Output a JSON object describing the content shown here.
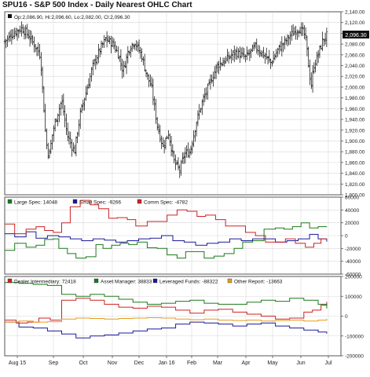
{
  "title": "SPU16 - S&P 500 Index - Daily Nearest OHLC Chart",
  "ohlc_readout": "Op:2,086.90, Hi:2,096.60, Lo:2,082.00, Cl:2,096.30",
  "last_price_badge": "2,096.30",
  "x_axis_labels": [
    "Aug 15",
    "Sep",
    "Oct",
    "Nov",
    "Dec",
    "Jan 16",
    "Feb",
    "Mar",
    "Apr",
    "May",
    "Jun",
    "Jul"
  ],
  "colors": {
    "price_bars": "#000000",
    "large_spec": "#1a7a1a",
    "small_spec": "#1a1a99",
    "comm_spec": "#cc2222",
    "dealer": "#cc2222",
    "asset_manager": "#1a7a1a",
    "leveraged": "#1a1a99",
    "other": "#e69b1f",
    "grid": "#d8d8d8",
    "badge_bg": "#111111",
    "badge_text": "#ffffff"
  },
  "chart_data": [
    {
      "type": "ohlc",
      "title": "SPU16 - S&P 500 Index - Daily Nearest OHLC Chart",
      "ylim": [
        1800,
        2140
      ],
      "ytick_labels": [
        "1,800.00",
        "1,820.00",
        "1,840.00",
        "1,860.00",
        "1,880.00",
        "1,900.00",
        "1,920.00",
        "1,940.00",
        "1,960.00",
        "1,980.00",
        "2,000.00",
        "2,020.00",
        "2,040.00",
        "2,060.00",
        "2,080.00",
        "2,100.00",
        "2,120.00",
        "2,140.00"
      ],
      "x_range": [
        0,
        11.8
      ],
      "close_path": [
        [
          0.0,
          2085
        ],
        [
          0.3,
          2100
        ],
        [
          0.6,
          2110
        ],
        [
          0.85,
          2095
        ],
        [
          1.0,
          2082
        ],
        [
          1.25,
          2060
        ],
        [
          1.45,
          1900
        ],
        [
          1.55,
          1870
        ],
        [
          1.7,
          1920
        ],
        [
          1.85,
          1950
        ],
        [
          2.0,
          1975
        ],
        [
          2.2,
          1910
        ],
        [
          2.45,
          1880
        ],
        [
          2.65,
          1950
        ],
        [
          2.9,
          2000
        ],
        [
          3.1,
          2040
        ],
        [
          3.35,
          2070
        ],
        [
          3.55,
          2090
        ],
        [
          3.8,
          2080
        ],
        [
          4.0,
          2060
        ],
        [
          4.15,
          2030
        ],
        [
          4.35,
          2070
        ],
        [
          4.55,
          2085
        ],
        [
          4.8,
          2060
        ],
        [
          5.0,
          2020
        ],
        [
          5.15,
          2000
        ],
        [
          5.35,
          1930
        ],
        [
          5.55,
          1890
        ],
        [
          5.75,
          1915
        ],
        [
          5.95,
          1860
        ],
        [
          6.15,
          1845
        ],
        [
          6.3,
          1875
        ],
        [
          6.5,
          1880
        ],
        [
          6.75,
          1940
        ],
        [
          6.95,
          1975
        ],
        [
          7.15,
          2000
        ],
        [
          7.45,
          2040
        ],
        [
          7.75,
          2050
        ],
        [
          8.1,
          2065
        ],
        [
          8.45,
          2055
        ],
        [
          8.8,
          2075
        ],
        [
          9.1,
          2060
        ],
        [
          9.35,
          2045
        ],
        [
          9.6,
          2070
        ],
        [
          9.85,
          2085
        ],
        [
          10.1,
          2100
        ],
        [
          10.35,
          2110
        ],
        [
          10.55,
          2095
        ],
        [
          10.75,
          2000
        ],
        [
          10.85,
          2040
        ],
        [
          11.0,
          2060
        ],
        [
          11.15,
          2085
        ],
        [
          11.3,
          2096.3
        ]
      ]
    },
    {
      "type": "line",
      "title": "",
      "ylim": [
        -60000,
        60000
      ],
      "ytick_labels": [
        "-60000",
        "-40000",
        "-20000",
        "0",
        "20000",
        "40000",
        "60000"
      ],
      "legend": [
        "Large Spec: 14048",
        "Small Spec: -9266",
        "Comm Spec: -4782"
      ],
      "series": [
        {
          "name": "Large Spec",
          "color": "#1a7a1a",
          "points": [
            [
              0.0,
              -23000
            ],
            [
              0.35,
              -12000
            ],
            [
              0.75,
              -18000
            ],
            [
              1.1,
              -15000
            ],
            [
              1.4,
              -6000
            ],
            [
              1.7,
              -5000
            ],
            [
              1.9,
              -20000
            ],
            [
              2.2,
              -28000
            ],
            [
              2.5,
              -35000
            ],
            [
              2.85,
              -33000
            ],
            [
              3.2,
              -14000
            ],
            [
              3.45,
              -20000
            ],
            [
              3.75,
              -15000
            ],
            [
              4.05,
              -12000
            ],
            [
              4.35,
              -14000
            ],
            [
              4.65,
              -10000
            ],
            [
              5.0,
              -19000
            ],
            [
              5.35,
              -20000
            ],
            [
              5.7,
              -30000
            ],
            [
              6.05,
              -35000
            ],
            [
              6.35,
              -25000
            ],
            [
              6.7,
              -25000
            ],
            [
              7.0,
              -35000
            ],
            [
              7.35,
              -32000
            ],
            [
              7.7,
              -28000
            ],
            [
              8.05,
              -20000
            ],
            [
              8.35,
              -10000
            ],
            [
              8.7,
              -8000
            ],
            [
              9.1,
              10000
            ],
            [
              9.5,
              12000
            ],
            [
              9.8,
              10000
            ],
            [
              10.1,
              14000
            ],
            [
              10.4,
              20000
            ],
            [
              10.7,
              12000
            ],
            [
              11.0,
              14000
            ],
            [
              11.3,
              14048
            ]
          ]
        },
        {
          "name": "Small Spec",
          "color": "#1a1a99",
          "points": [
            [
              0.0,
              3000
            ],
            [
              0.35,
              -2000
            ],
            [
              0.75,
              6000
            ],
            [
              1.1,
              -4000
            ],
            [
              1.5,
              0
            ],
            [
              1.9,
              -2000
            ],
            [
              2.3,
              -5000
            ],
            [
              2.7,
              -8000
            ],
            [
              3.1,
              -5000
            ],
            [
              3.5,
              -7000
            ],
            [
              3.9,
              -10000
            ],
            [
              4.3,
              -8000
            ],
            [
              4.7,
              -5000
            ],
            [
              5.1,
              -4000
            ],
            [
              5.5,
              0
            ],
            [
              5.9,
              -8000
            ],
            [
              6.3,
              -10000
            ],
            [
              6.7,
              -15000
            ],
            [
              7.1,
              -12000
            ],
            [
              7.5,
              -10000
            ],
            [
              7.9,
              -5000
            ],
            [
              8.3,
              -8000
            ],
            [
              8.7,
              -5000
            ],
            [
              9.1,
              -5000
            ],
            [
              9.5,
              -10000
            ],
            [
              9.9,
              -8000
            ],
            [
              10.3,
              -5000
            ],
            [
              10.7,
              2000
            ],
            [
              11.0,
              -5000
            ],
            [
              11.3,
              -9266
            ]
          ]
        },
        {
          "name": "Comm Spec",
          "color": "#cc2222",
          "points": [
            [
              0.0,
              18000
            ],
            [
              0.35,
              3000
            ],
            [
              0.75,
              10000
            ],
            [
              1.1,
              14000
            ],
            [
              1.4,
              8000
            ],
            [
              1.7,
              5000
            ],
            [
              2.0,
              20000
            ],
            [
              2.3,
              45000
            ],
            [
              2.65,
              55000
            ],
            [
              3.0,
              48000
            ],
            [
              3.3,
              42000
            ],
            [
              3.65,
              27000
            ],
            [
              3.95,
              28000
            ],
            [
              4.3,
              25000
            ],
            [
              4.6,
              15000
            ],
            [
              5.0,
              22000
            ],
            [
              5.35,
              22000
            ],
            [
              5.7,
              32000
            ],
            [
              6.05,
              40000
            ],
            [
              6.4,
              38000
            ],
            [
              6.75,
              30000
            ],
            [
              7.05,
              32000
            ],
            [
              7.4,
              25000
            ],
            [
              7.75,
              15000
            ],
            [
              8.1,
              15000
            ],
            [
              8.45,
              5000
            ],
            [
              8.8,
              0
            ],
            [
              9.15,
              -10000
            ],
            [
              9.5,
              -10000
            ],
            [
              9.85,
              -5000
            ],
            [
              10.2,
              -12000
            ],
            [
              10.55,
              -18000
            ],
            [
              10.85,
              -12000
            ],
            [
              11.1,
              -5000
            ],
            [
              11.3,
              -4782
            ]
          ]
        }
      ]
    },
    {
      "type": "line",
      "title": "",
      "ylim": [
        -200000,
        200000
      ],
      "ytick_labels": [
        "-200000",
        "-100000",
        "0",
        "100000",
        "200000"
      ],
      "legend": [
        "Dealer Intermediary: 72418",
        "Asset Manager: 38833",
        "Leveraged Funds: -88322",
        "Other Report: -13663"
      ],
      "series": [
        {
          "name": "Dealer Intermediary",
          "color": "#cc2222",
          "points": [
            [
              0.0,
              -20000
            ],
            [
              0.4,
              -35000
            ],
            [
              0.8,
              -30000
            ],
            [
              1.2,
              -10000
            ],
            [
              1.6,
              -20000
            ],
            [
              2.0,
              80000
            ],
            [
              2.5,
              90000
            ],
            [
              3.0,
              80000
            ],
            [
              3.5,
              60000
            ],
            [
              4.0,
              45000
            ],
            [
              4.5,
              40000
            ],
            [
              5.0,
              50000
            ],
            [
              5.5,
              45000
            ],
            [
              6.0,
              30000
            ],
            [
              6.5,
              15000
            ],
            [
              7.0,
              30000
            ],
            [
              7.5,
              35000
            ],
            [
              8.0,
              20000
            ],
            [
              8.5,
              10000
            ],
            [
              9.0,
              0
            ],
            [
              9.5,
              -15000
            ],
            [
              10.0,
              -10000
            ],
            [
              10.5,
              20000
            ],
            [
              10.8,
              30000
            ],
            [
              11.1,
              55000
            ],
            [
              11.3,
              72418
            ]
          ]
        },
        {
          "name": "Asset Manager",
          "color": "#1a7a1a",
          "points": [
            [
              0.0,
              170000
            ],
            [
              0.5,
              165000
            ],
            [
              1.0,
              160000
            ],
            [
              1.5,
              155000
            ],
            [
              2.0,
              110000
            ],
            [
              2.5,
              100000
            ],
            [
              3.0,
              110000
            ],
            [
              3.5,
              100000
            ],
            [
              4.0,
              85000
            ],
            [
              4.5,
              70000
            ],
            [
              5.0,
              60000
            ],
            [
              5.5,
              65000
            ],
            [
              6.0,
              75000
            ],
            [
              6.5,
              80000
            ],
            [
              7.0,
              65000
            ],
            [
              7.5,
              60000
            ],
            [
              8.0,
              60000
            ],
            [
              8.5,
              70000
            ],
            [
              9.0,
              80000
            ],
            [
              9.5,
              75000
            ],
            [
              10.0,
              90000
            ],
            [
              10.5,
              80000
            ],
            [
              11.0,
              60000
            ],
            [
              11.3,
              38833
            ]
          ]
        },
        {
          "name": "Leveraged Funds",
          "color": "#1a1a99",
          "points": [
            [
              0.0,
              -30000
            ],
            [
              0.5,
              -55000
            ],
            [
              1.0,
              -60000
            ],
            [
              1.5,
              -75000
            ],
            [
              2.0,
              -90000
            ],
            [
              2.5,
              -110000
            ],
            [
              3.0,
              -100000
            ],
            [
              3.5,
              -95000
            ],
            [
              4.0,
              -85000
            ],
            [
              4.5,
              -75000
            ],
            [
              5.0,
              -65000
            ],
            [
              5.5,
              -60000
            ],
            [
              6.0,
              -40000
            ],
            [
              6.5,
              -30000
            ],
            [
              7.0,
              -35000
            ],
            [
              7.5,
              -40000
            ],
            [
              8.0,
              -50000
            ],
            [
              8.5,
              -40000
            ],
            [
              9.0,
              -35000
            ],
            [
              9.5,
              -50000
            ],
            [
              10.0,
              -60000
            ],
            [
              10.5,
              -70000
            ],
            [
              11.0,
              -80000
            ],
            [
              11.3,
              -88322
            ]
          ]
        },
        {
          "name": "Other Report",
          "color": "#e69b1f",
          "points": [
            [
              0.0,
              -30000
            ],
            [
              0.5,
              -25000
            ],
            [
              1.0,
              -30000
            ],
            [
              1.5,
              -28000
            ],
            [
              2.0,
              -15000
            ],
            [
              2.5,
              -10000
            ],
            [
              3.0,
              -12000
            ],
            [
              3.5,
              -15000
            ],
            [
              4.0,
              -12000
            ],
            [
              4.5,
              -10000
            ],
            [
              5.0,
              -8000
            ],
            [
              5.5,
              -10000
            ],
            [
              6.0,
              -15000
            ],
            [
              6.5,
              -18000
            ],
            [
              7.0,
              -15000
            ],
            [
              7.5,
              -20000
            ],
            [
              8.0,
              -22000
            ],
            [
              8.5,
              -20000
            ],
            [
              9.0,
              -25000
            ],
            [
              9.5,
              -22000
            ],
            [
              10.0,
              -20000
            ],
            [
              10.5,
              -25000
            ],
            [
              11.0,
              -20000
            ],
            [
              11.3,
              -13663
            ]
          ]
        }
      ]
    }
  ]
}
